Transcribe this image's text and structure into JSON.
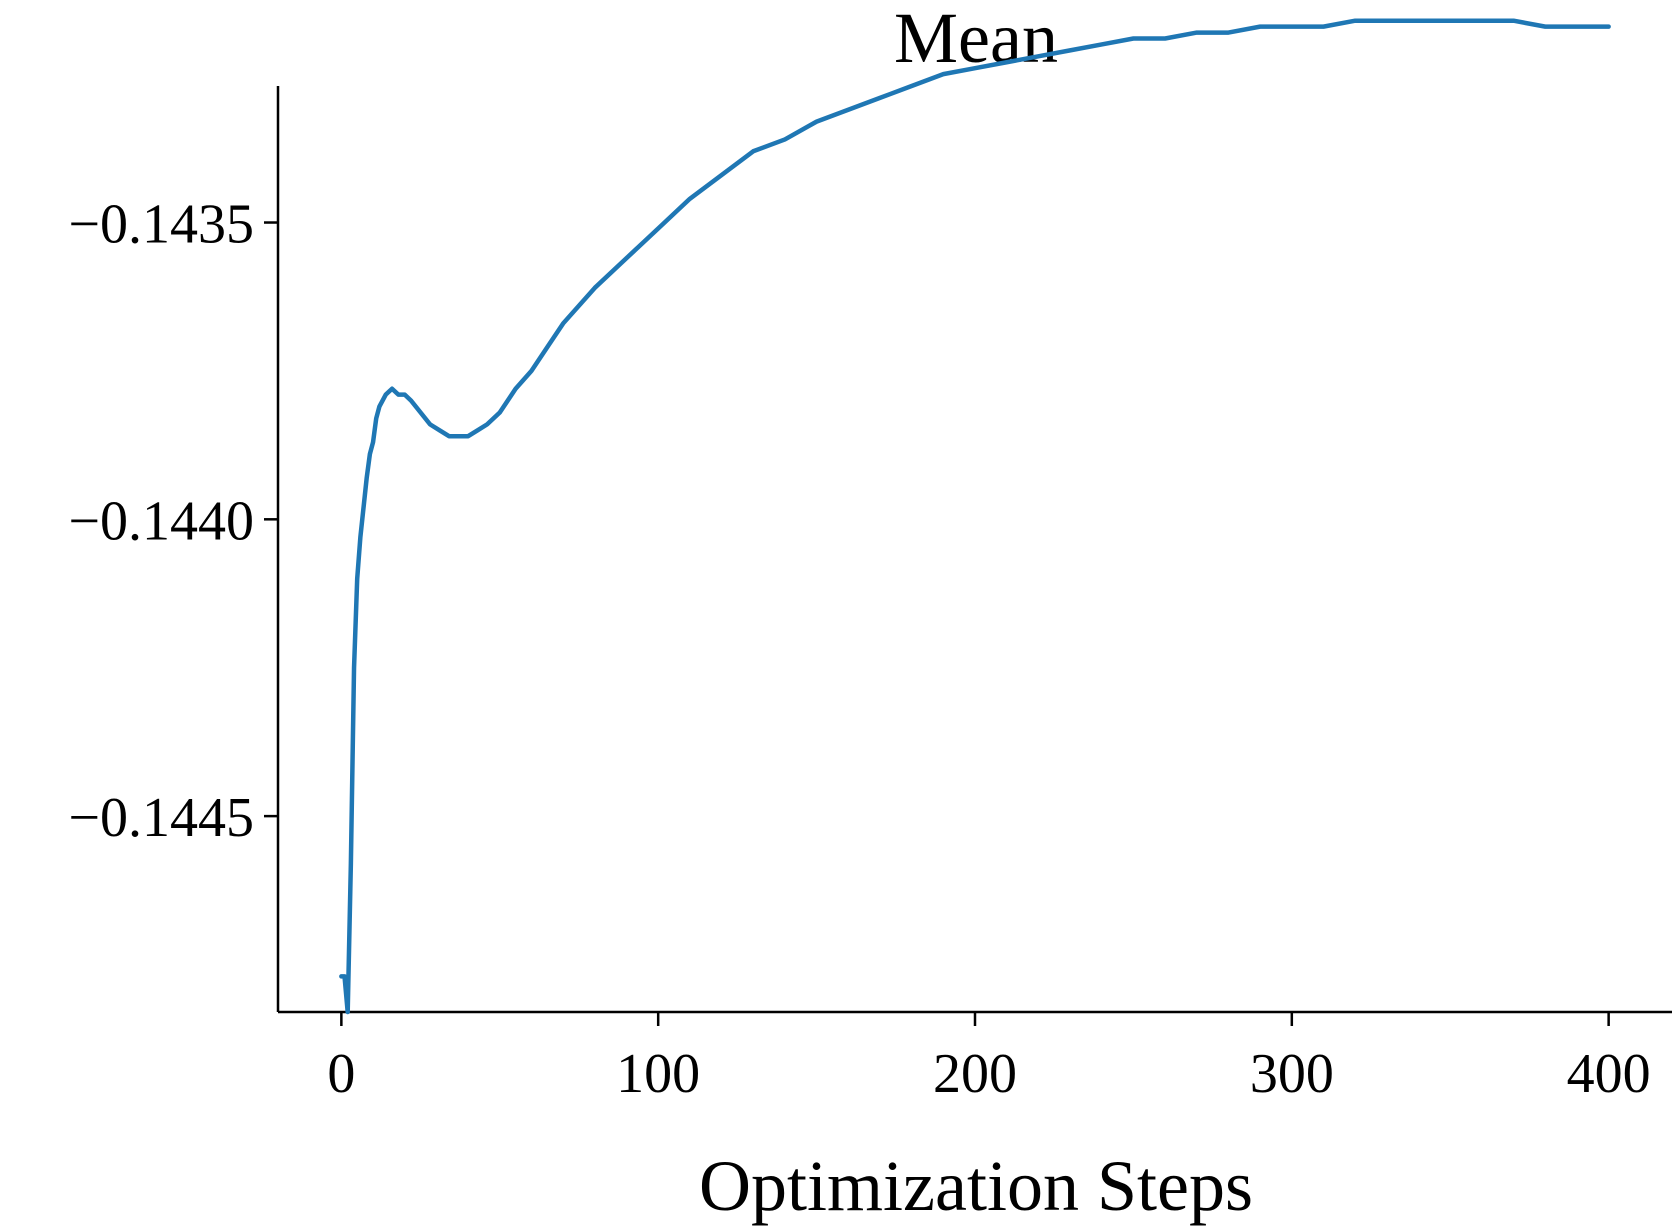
{
  "chart_data": {
    "type": "line",
    "title": "Mean",
    "xlabel": "Optimization Steps",
    "ylabel": "",
    "xlim": [
      -20,
      420
    ],
    "ylim": [
      -0.14483,
      -0.14327
    ],
    "grid": false,
    "legend": "none",
    "x_ticks": [
      {
        "value": 0,
        "label": "0"
      },
      {
        "value": 100,
        "label": "100"
      },
      {
        "value": 200,
        "label": "200"
      },
      {
        "value": 300,
        "label": "300"
      },
      {
        "value": 400,
        "label": "400"
      }
    ],
    "y_ticks": [
      {
        "value": -0.1435,
        "label": "−0.1435"
      },
      {
        "value": -0.144,
        "label": "−0.1440"
      },
      {
        "value": -0.1445,
        "label": "−0.1445"
      }
    ],
    "series": [
      {
        "color": "#1f77b4",
        "x": [
          0,
          1,
          2,
          3,
          4,
          5,
          6,
          7,
          8,
          9,
          10,
          11,
          12,
          14,
          16,
          18,
          20,
          22,
          25,
          28,
          31,
          34,
          37,
          40,
          43,
          46,
          50,
          55,
          60,
          65,
          70,
          80,
          90,
          100,
          110,
          120,
          130,
          140,
          150,
          160,
          170,
          180,
          190,
          200,
          210,
          220,
          230,
          240,
          250,
          260,
          270,
          280,
          290,
          300,
          310,
          320,
          330,
          340,
          350,
          360,
          370,
          380,
          390,
          400
        ],
        "y": [
          -0.14477,
          -0.14477,
          -0.14483,
          -0.14458,
          -0.14425,
          -0.1441,
          -0.14403,
          -0.14398,
          -0.14393,
          -0.14389,
          -0.14387,
          -0.14383,
          -0.14381,
          -0.14379,
          -0.14378,
          -0.14379,
          -0.14379,
          -0.1438,
          -0.14382,
          -0.14384,
          -0.14385,
          -0.14386,
          -0.14386,
          -0.14386,
          -0.14385,
          -0.14384,
          -0.14382,
          -0.14378,
          -0.14375,
          -0.14371,
          -0.14367,
          -0.14361,
          -0.14356,
          -0.14351,
          -0.14346,
          -0.14342,
          -0.14338,
          -0.14336,
          -0.14333,
          -0.14331,
          -0.14329,
          -0.14327,
          -0.14325,
          -0.14324,
          -0.14323,
          -0.14322,
          -0.14321,
          -0.1432,
          -0.14319,
          -0.14319,
          -0.14318,
          -0.14318,
          -0.14317,
          -0.14317,
          -0.14317,
          -0.14316,
          -0.14316,
          -0.14316,
          -0.14316,
          -0.14316,
          -0.14316,
          -0.14317,
          -0.14317,
          -0.14317
        ]
      }
    ]
  }
}
